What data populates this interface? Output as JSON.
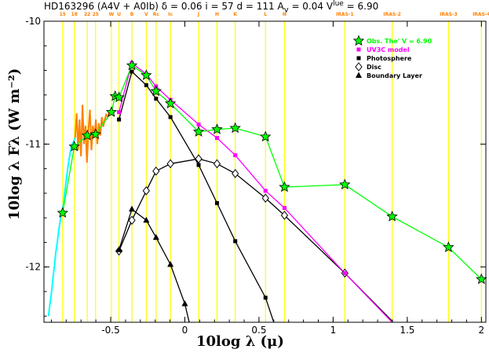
{
  "header": {
    "text": "HD163296  (A4V + A0Ib)  δ = 0.06  i = 57  d = 111  A",
    "av_sub": "v",
    "rest": " = 0.04  V",
    "v_sup": "lue",
    "tail": " = 6.90"
  },
  "chart_data": {
    "type": "line",
    "title": "HD163296 (A4V + A0Ib) δ = 0.06 i = 57 d = 111 Av = 0.04 V = 6.90",
    "xlabel": "10log λ (μ)",
    "ylabel": "10log λ Fλ (W m⁻²)",
    "xlim": [
      -0.95,
      2.03
    ],
    "ylim": [
      -12.45,
      -10.0
    ],
    "x_ticks": [
      -0.5,
      0,
      0.5,
      1,
      1.5,
      2
    ],
    "x_tick_labels": [
      "-0.5",
      "0",
      "0.5",
      "1",
      "1.5",
      "2"
    ],
    "y_ticks": [
      -12,
      -11,
      -10
    ],
    "y_tick_labels": [
      "-12",
      "-11",
      "-10"
    ],
    "grid": false,
    "legend_position": "top-right",
    "colors": {
      "observed": "#00ff00",
      "model": "#ff00ff",
      "photosphere": "#000000",
      "disc": "#000000",
      "boundary": "#000000",
      "filter_lines": "#ffff00",
      "filter_labels": "#ff8000",
      "spectrum_uv": "#00ffff",
      "spectrum_optical": "#ff8000"
    },
    "filters": [
      {
        "label": "15",
        "x": -0.824
      },
      {
        "label": "18",
        "x": -0.745
      },
      {
        "label": "22",
        "x": -0.658
      },
      {
        "label": "25",
        "x": -0.602
      },
      {
        "label": "W",
        "x": -0.495
      },
      {
        "label": "U",
        "x": -0.444
      },
      {
        "label": "B",
        "x": -0.357
      },
      {
        "label": "V",
        "x": -0.26
      },
      {
        "label": "Rc",
        "x": -0.194
      },
      {
        "label": "Ic",
        "x": -0.097
      },
      {
        "label": "J",
        "x": 0.093
      },
      {
        "label": "H",
        "x": 0.217
      },
      {
        "label": "K",
        "x": 0.34
      },
      {
        "label": "L",
        "x": 0.544
      },
      {
        "label": "N",
        "x": 0.672
      },
      {
        "label": "IRAS-1",
        "x": 1.079
      },
      {
        "label": "IRAS-2",
        "x": 1.398
      },
      {
        "label": "IRAS-3",
        "x": 1.778
      },
      {
        "label": "IRAS-4",
        "x": 2.0
      }
    ],
    "series": [
      {
        "name": "Obs. The' V = 6.90",
        "marker": "star",
        "x": [
          -0.824,
          -0.745,
          -0.658,
          -0.602,
          -0.495,
          -0.47,
          -0.444,
          -0.357,
          -0.26,
          -0.194,
          -0.097,
          0.093,
          0.217,
          0.34,
          0.544,
          0.672,
          1.079,
          1.398,
          1.778,
          2.0
        ],
        "y": [
          -11.56,
          -11.02,
          -10.93,
          -10.92,
          -10.74,
          -10.61,
          -10.62,
          -10.36,
          -10.44,
          -10.57,
          -10.67,
          -10.9,
          -10.88,
          -10.87,
          -10.94,
          -11.35,
          -11.33,
          -11.59,
          -11.84,
          -12.1
        ]
      },
      {
        "name": "UV3C model",
        "marker": "dot",
        "x": [
          -0.444,
          -0.357,
          -0.26,
          -0.194,
          -0.097,
          0.093,
          0.217,
          0.34,
          0.544,
          0.672,
          1.079,
          1.398
        ],
        "y": [
          -10.74,
          -10.34,
          -10.43,
          -10.53,
          -10.64,
          -10.84,
          -10.95,
          -11.09,
          -11.38,
          -11.52,
          -12.05,
          -12.45
        ]
      },
      {
        "name": "Photosphere",
        "marker": "square",
        "x": [
          -0.444,
          -0.357,
          -0.26,
          -0.194,
          -0.097,
          0.093,
          0.217,
          0.34,
          0.544,
          0.6
        ],
        "y": [
          -10.8,
          -10.41,
          -10.52,
          -10.63,
          -10.78,
          -11.17,
          -11.48,
          -11.79,
          -12.25,
          -12.45
        ]
      },
      {
        "name": "Disc",
        "marker": "diamond",
        "x": [
          -0.444,
          -0.357,
          -0.26,
          -0.194,
          -0.097,
          0.093,
          0.217,
          0.34,
          0.544,
          0.672,
          1.079,
          1.398
        ],
        "y": [
          -11.87,
          -11.62,
          -11.38,
          -11.22,
          -11.16,
          -11.12,
          -11.16,
          -11.24,
          -11.44,
          -11.58,
          -12.05,
          -12.44
        ]
      },
      {
        "name": "Boundary Layer",
        "marker": "triangle",
        "x": [
          -0.444,
          -0.357,
          -0.26,
          -0.194,
          -0.097,
          0.0,
          0.03
        ],
        "y": [
          -11.86,
          -11.53,
          -11.62,
          -11.76,
          -11.98,
          -12.3,
          -12.45
        ]
      }
    ],
    "spectrum_uv": {
      "x": [
        -0.92,
        -0.91,
        -0.9,
        -0.89,
        -0.88,
        -0.87,
        -0.86,
        -0.85,
        -0.84,
        -0.83,
        -0.82,
        -0.81,
        -0.8,
        -0.79,
        -0.78,
        -0.77,
        -0.76,
        -0.75,
        -0.74
      ],
      "y": [
        -12.4,
        -12.3,
        -12.22,
        -12.1,
        -12.0,
        -11.88,
        -11.8,
        -11.7,
        -11.62,
        -11.55,
        -11.5,
        -11.4,
        -11.3,
        -11.2,
        -11.12,
        -11.05,
        -11.0,
        -10.98,
        -10.95
      ]
    },
    "spectrum_optical": {
      "x": [
        -0.74,
        -0.73,
        -0.72,
        -0.71,
        -0.7,
        -0.69,
        -0.68,
        -0.67,
        -0.66,
        -0.65,
        -0.64,
        -0.63,
        -0.62,
        -0.61,
        -0.6,
        -0.59,
        -0.58,
        -0.57,
        -0.56,
        -0.55,
        -0.54,
        -0.53,
        -0.52,
        -0.51,
        -0.5
      ],
      "y": [
        -10.95,
        -10.75,
        -11.05,
        -10.8,
        -11.1,
        -10.68,
        -11.0,
        -10.85,
        -11.15,
        -10.88,
        -10.72,
        -11.05,
        -10.85,
        -10.95,
        -10.8,
        -11.0,
        -10.83,
        -10.93,
        -10.78,
        -10.86,
        -10.8,
        -10.76,
        -10.78,
        -10.74,
        -10.72
      ]
    }
  }
}
